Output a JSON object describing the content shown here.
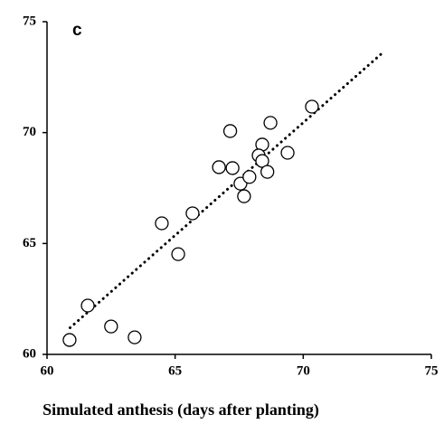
{
  "chart_data": {
    "type": "scatter",
    "panel_label": "c",
    "x_label": "Simulated anthesis (days after planting)",
    "xlim": [
      60,
      75
    ],
    "ylim": [
      60,
      75
    ],
    "xticks": [
      60,
      65,
      70,
      75
    ],
    "yticks": [
      60,
      65,
      70,
      75
    ],
    "x": [
      60.88,
      61.59,
      62.5,
      63.42,
      64.48,
      65.12,
      65.68,
      66.71,
      67.24,
      67.55,
      67.9,
      67.69,
      67.15,
      68.4,
      68.26,
      68.4,
      68.6,
      68.72,
      69.39,
      70.34
    ],
    "y": [
      60.65,
      62.2,
      61.26,
      60.77,
      65.91,
      64.52,
      66.36,
      68.44,
      68.4,
      67.7,
      68.0,
      67.13,
      70.07,
      69.46,
      68.97,
      68.72,
      68.23,
      70.44,
      69.09,
      71.17
    ],
    "trendline": {
      "x": [
        60.9,
        73.1
      ],
      "y": [
        61.2,
        73.6
      ]
    },
    "color": "#000000"
  }
}
